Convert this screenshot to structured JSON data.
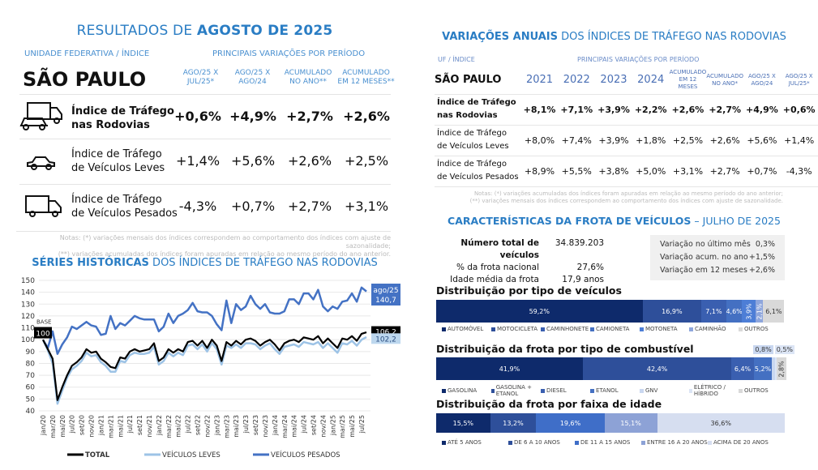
{
  "left": {
    "title_prefix": "RESULTADOS DE ",
    "title_bold": "AGOSTO DE 2025",
    "uf_label": "UNIDADE FEDERATIVA / ÍNDICE",
    "periods_label": "PRINCIPAIS VARIAÇÕES POR PERÍODO",
    "state": "SÃO PAULO",
    "columns": [
      "AGO/25 X\nJUL/25*",
      "AGO/25 X\nAGO/24",
      "ACUMULADO\nNO ANO**",
      "ACUMULADO\nEM 12 MESES**"
    ],
    "rows": [
      {
        "label": "Índice de Tráfego\nnas Rodovias",
        "icon": "truck-and-car-icon",
        "values": [
          "+0,6%",
          "+4,9%",
          "+2,7%",
          "+2,6%"
        ]
      },
      {
        "label": "Índice de Tráfego\nde Veículos Leves",
        "icon": "car-icon",
        "values": [
          "+1,4%",
          "+5,6%",
          "+2,6%",
          "+2,5%"
        ]
      },
      {
        "label": "Índice de Tráfego\nde Veículos Pesados",
        "icon": "truck-icon",
        "values": [
          "-4,3%",
          "+0,7%",
          "+2,7%",
          "+3,1%"
        ]
      }
    ],
    "notes": [
      "Notas: (*) variações mensais dos índices correspondem ao comportamento dos índices com ajuste de sazonalidade;",
      "(**) variações acumuladas dos índices foram apuradas em relação ao mesmo período do ano anterior."
    ]
  },
  "series_title_bold": "SÉRIES HISTÓRICAS",
  "series_title_rest": " DOS ÍNDICES DE TRÁFEGO NAS RODOVIAS",
  "chart_data": {
    "type": "line",
    "ylim": [
      40,
      150
    ],
    "yticks": [
      40,
      50,
      60,
      70,
      80,
      90,
      100,
      110,
      120,
      130,
      140,
      150
    ],
    "grid": true,
    "legend": "bottom",
    "x": [
      "jan/20",
      "fev/20",
      "mar/20",
      "abr/20",
      "mai/20",
      "jun/20",
      "jul/20",
      "ago/20",
      "set/20",
      "out/20",
      "nov/20",
      "dez/20",
      "jan/21",
      "fev/21",
      "mar/21",
      "abr/21",
      "mai/21",
      "jun/21",
      "jul/21",
      "ago/21",
      "set/21",
      "out/21",
      "nov/21",
      "dez/21",
      "jan/22",
      "fev/22",
      "mar/22",
      "abr/22",
      "mai/22",
      "jun/22",
      "jul/22",
      "ago/22",
      "set/22",
      "out/22",
      "nov/22",
      "dez/22",
      "jan/23",
      "fev/23",
      "mar/23",
      "abr/23",
      "mai/23",
      "jun/23",
      "jul/23",
      "ago/23",
      "set/23",
      "out/23",
      "nov/23",
      "dez/23",
      "jan/24",
      "fev/24",
      "mar/24",
      "abr/24",
      "mai/24",
      "jun/24",
      "jul/24",
      "ago/24",
      "set/24",
      "out/24",
      "nov/24",
      "dez/24",
      "jan/25",
      "fev/25",
      "mar/25",
      "abr/25",
      "mai/25",
      "jun/25",
      "jul/25",
      "ago/25"
    ],
    "xtick_labels": [
      "jan/20",
      "mar/20",
      "mai/20",
      "jul/20",
      "set/20",
      "nov/20",
      "jan/21",
      "mar/21",
      "mai/21",
      "jul/21",
      "set/21",
      "nov/21",
      "jan/22",
      "mar/22",
      "mai/22",
      "jul/22",
      "set/22",
      "nov/22",
      "jan/23",
      "mar/23",
      "mai/23",
      "jul/23",
      "set/23",
      "nov/23",
      "jan/24",
      "mar/24",
      "mai/24",
      "jul/24",
      "set/24",
      "nov/24",
      "jan/25",
      "mar/25",
      "mai/25",
      "jul/25"
    ],
    "series": [
      {
        "name": "VEÍCULOS PESADOS",
        "color": "#4472c4",
        "values": [
          100,
          93,
          107,
          88,
          96,
          102,
          111,
          109,
          112,
          115,
          112,
          111,
          104,
          105,
          120,
          109,
          114,
          112,
          116,
          120,
          118,
          117,
          117,
          117,
          107,
          111,
          122,
          114,
          120,
          122,
          125,
          131,
          124,
          123,
          123,
          120,
          113,
          108,
          133,
          114,
          130,
          125,
          128,
          137,
          130,
          126,
          130,
          123,
          122,
          122,
          124,
          134,
          134,
          130,
          139,
          139,
          134,
          142,
          128,
          124,
          128,
          126,
          132,
          133,
          139,
          132,
          144,
          140.7
        ]
      },
      {
        "name": "VEÍCULOS LEVES",
        "color": "#9dc3e6",
        "values": [
          100,
          91,
          80,
          46,
          57,
          68,
          75,
          78,
          82,
          89,
          86,
          87,
          81,
          78,
          73,
          73,
          82,
          81,
          87,
          89,
          88,
          88,
          89,
          94,
          79,
          82,
          89,
          86,
          89,
          87,
          95,
          96,
          92,
          96,
          90,
          97,
          92,
          79,
          95,
          93,
          96,
          93,
          97,
          97,
          96,
          92,
          95,
          97,
          92,
          88,
          94,
          95,
          96,
          94,
          98,
          97,
          96,
          98,
          93,
          97,
          93,
          89,
          97,
          96,
          99,
          95,
          100,
          102.2
        ]
      },
      {
        "name": "TOTAL",
        "color": "#000000",
        "values": [
          100,
          92,
          84,
          49,
          60,
          70,
          78,
          81,
          85,
          92,
          89,
          90,
          84,
          81,
          77,
          76,
          85,
          84,
          90,
          92,
          90,
          91,
          92,
          97,
          82,
          85,
          92,
          89,
          92,
          90,
          98,
          99,
          95,
          99,
          93,
          100,
          95,
          82,
          98,
          95,
          99,
          96,
          100,
          101,
          99,
          95,
          98,
          100,
          96,
          91,
          97,
          99,
          100,
          98,
          102,
          101,
          100,
          103,
          97,
          101,
          97,
          93,
          101,
          100,
          103,
          99,
          105,
          106.2
        ]
      }
    ],
    "annotations": {
      "base_label": "BASE",
      "base_value": "100",
      "last_period": "ago/25",
      "pesados_last": "140,7",
      "total_last": "106,2",
      "leves_last": "102,2"
    }
  },
  "right": {
    "title_bold": "VARIAÇÕES ANUAIS",
    "title_rest": " DOS ÍNDICES DE TRÁFEGO NAS RODOVIAS",
    "uf_label": "UF / ÍNDICE",
    "periods_label": "PRINCIPAIS VARIAÇÕES POR PERÍODO",
    "state": "SÃO PAULO",
    "columns": [
      "2021",
      "2022",
      "2023",
      "2024",
      "ACUMULADO EM 12 MESES",
      "ACUMULADO NO ANO*",
      "AGO/25 X AGO/24",
      "AGO/25 X JUL/25*"
    ],
    "rows": [
      {
        "label": "Índice de Tráfego\nnas Rodovias",
        "values": [
          "+8,1%",
          "+7,1%",
          "+3,9%",
          "+2,2%",
          "+2,6%",
          "+2,7%",
          "+4,9%",
          "+0,6%"
        ]
      },
      {
        "label": "Índice de Tráfego\nde Veículos Leves",
        "values": [
          "+8,0%",
          "+7,4%",
          "+3,9%",
          "+1,8%",
          "+2,5%",
          "+2,6%",
          "+5,6%",
          "+1,4%"
        ]
      },
      {
        "label": "Índice de Tráfego\nde Veículos Pesados",
        "values": [
          "+8,9%",
          "+5,5%",
          "+3,8%",
          "+5,0%",
          "+3,1%",
          "+2,7%",
          "+0,7%",
          "-4,3%"
        ]
      }
    ],
    "notes": [
      "Notas: (*) variações acumuladas dos índices foram apuradas em relação ao mesmo período do ano anterior;",
      "(**) variações mensais dos índices correspondem ao comportamento dos índices com ajuste de sazonalidade."
    ]
  },
  "fleet": {
    "title_bold": "CARACTERÍSTICAS DA FROTA DE VEÍCULOS",
    "title_rest": " – JULHO DE 2025",
    "stats": [
      {
        "label": "Número total de veículos",
        "value": "34.839.203"
      },
      {
        "label": "% da frota nacional",
        "value": "27,6%"
      },
      {
        "label": "Idade média da frota",
        "value": "17,9 anos"
      }
    ],
    "variations": [
      {
        "label": "Variação no último mês",
        "value": "0,3%"
      },
      {
        "label": "Variação acum. no ano",
        "value": "+1,5%"
      },
      {
        "label": "Variação em 12 meses",
        "value": "+2,6%"
      }
    ],
    "by_type": {
      "title": "Distribuição por tipo de veículos",
      "segments": [
        {
          "name": "AUTOMÓVEL",
          "pct": 59.2,
          "label": "59,2%",
          "color": "#0e2a6b"
        },
        {
          "name": "MOTOCICLETA",
          "pct": 16.9,
          "label": "16,9%",
          "color": "#2e4f9a"
        },
        {
          "name": "CAMINHONETE",
          "pct": 7.1,
          "label": "7,1%",
          "color": "#3a5fb0"
        },
        {
          "name": "CAMIONETA",
          "pct": 4.6,
          "label": "4,6%",
          "color": "#4470c2"
        },
        {
          "name": "MOTONETA",
          "pct": 3.9,
          "label": "3,9%",
          "color": "#4d7ed6"
        },
        {
          "name": "CAMINHÃO",
          "pct": 2.1,
          "label": "2,1%",
          "color": "#8ea6dc"
        },
        {
          "name": "OUTROS",
          "pct": 6.1,
          "label": "6,1%",
          "color": "#d9d9d9"
        }
      ]
    },
    "by_fuel": {
      "title": "Distribuição da frota por tipo de combustível",
      "segments": [
        {
          "name": "GASOLINA",
          "pct": 41.9,
          "label": "41,9%",
          "color": "#0e2a6b"
        },
        {
          "name": "GASOLINA + ETANOL",
          "pct": 42.4,
          "label": "42,4%",
          "color": "#2e4f9a"
        },
        {
          "name": "DIESEL",
          "pct": 6.4,
          "label": "6,4%",
          "color": "#3a5fb0"
        },
        {
          "name": "ETANOL",
          "pct": 5.2,
          "label": "5,2%",
          "color": "#4470c2"
        },
        {
          "name": "GNV",
          "pct": 0.8,
          "label": "0,8%",
          "color": "#c9d7f0"
        },
        {
          "name": "ELÉTRICO / HÍBRIDO",
          "pct": 0.5,
          "label": "0,5%",
          "color": "#dce5f5"
        },
        {
          "name": "OUTROS",
          "pct": 2.8,
          "label": "2,8%",
          "color": "#d9d9d9"
        }
      ]
    },
    "by_age": {
      "title": "Distribuição da frota por faixa de idade",
      "segments": [
        {
          "name": "ATÉ 5 ANOS",
          "pct": 15.5,
          "label": "15,5%",
          "color": "#0e2a6b"
        },
        {
          "name": "DE 6 A 10 ANOS",
          "pct": 13.2,
          "label": "13,2%",
          "color": "#2e4f9a"
        },
        {
          "name": "DE 11 A 15 ANOS",
          "pct": 19.6,
          "label": "19,6%",
          "color": "#3f6ec8"
        },
        {
          "name": "ENTRE 16 A 20 ANOS",
          "pct": 15.1,
          "label": "15,1%",
          "color": "#8da2d6"
        },
        {
          "name": "ACIMA DE 20 ANOS",
          "pct": 36.6,
          "label": "36,6%",
          "color": "#d6def0"
        }
      ]
    }
  }
}
